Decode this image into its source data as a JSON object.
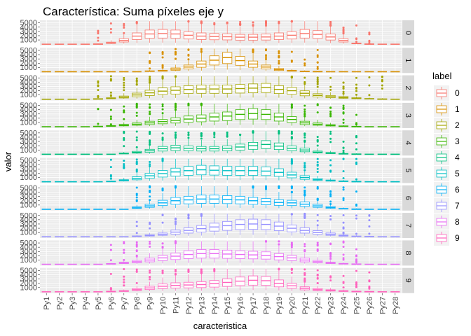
{
  "chart_data": {
    "type": "boxplot",
    "title": "Característica: Suma píxeles eje y",
    "xlabel": "caracteristica",
    "ylabel": "valor",
    "categories": [
      "Py1",
      "Py2",
      "Py3",
      "Py4",
      "Py5",
      "Py6",
      "Py7",
      "Py8",
      "Py9",
      "Py10",
      "Py11",
      "Py12",
      "Py13",
      "Py14",
      "Py15",
      "Py16",
      "Py17",
      "Py18",
      "Py19",
      "Py20",
      "Py21",
      "Py22",
      "Py23",
      "Py24",
      "Py25",
      "Py26",
      "Py27",
      "Py28"
    ],
    "yticks": [
      1000,
      2000,
      3000,
      4000,
      5000
    ],
    "ylim": [
      -300,
      5600
    ],
    "facet_by": "label",
    "legend": {
      "title": "label",
      "position": "right"
    },
    "panel_colors": [
      "#F8766D",
      "#D89000",
      "#A3A500",
      "#39B600",
      "#00BF7D",
      "#00BFC4",
      "#00B0F6",
      "#9590FF",
      "#E76BF3",
      "#FF62BC"
    ],
    "panels": [
      {
        "label": "0",
        "medians": [
          0,
          0,
          0,
          0,
          20,
          300,
          900,
          1900,
          2400,
          2500,
          2400,
          2100,
          1900,
          1800,
          1750,
          1650,
          1650,
          1700,
          1900,
          2100,
          2500,
          2300,
          1700,
          900,
          150,
          20,
          0,
          0
        ]
      },
      {
        "label": "1",
        "medians": [
          0,
          0,
          0,
          0,
          0,
          0,
          0,
          0,
          100,
          200,
          600,
          1100,
          1800,
          2700,
          3300,
          2600,
          1800,
          1100,
          500,
          200,
          60,
          20,
          0,
          0,
          0,
          0,
          0,
          0
        ]
      },
      {
        "label": "2",
        "medians": [
          0,
          0,
          0,
          0,
          50,
          200,
          500,
          1000,
          1500,
          1900,
          2100,
          2300,
          2400,
          2400,
          2400,
          2500,
          2600,
          2700,
          2300,
          2000,
          1400,
          900,
          600,
          400,
          200,
          80,
          20,
          0
        ]
      },
      {
        "label": "3",
        "medians": [
          0,
          0,
          0,
          0,
          50,
          150,
          350,
          600,
          900,
          1200,
          1500,
          1800,
          2000,
          2300,
          2500,
          2900,
          3100,
          2900,
          2300,
          1700,
          900,
          600,
          300,
          100,
          30,
          0,
          0,
          0
        ]
      },
      {
        "label": "4",
        "medians": [
          0,
          0,
          0,
          0,
          0,
          0,
          150,
          450,
          800,
          1300,
          1500,
          1400,
          1300,
          1300,
          1400,
          1700,
          2000,
          2300,
          1900,
          1400,
          1000,
          500,
          250,
          80,
          20,
          0,
          0,
          0
        ]
      },
      {
        "label": "5",
        "medians": [
          0,
          0,
          0,
          0,
          0,
          50,
          300,
          800,
          1400,
          1900,
          2300,
          2600,
          2800,
          2700,
          2600,
          2600,
          2600,
          2500,
          2200,
          1600,
          1000,
          500,
          250,
          100,
          30,
          0,
          0,
          0
        ]
      },
      {
        "label": "6",
        "medians": [
          0,
          0,
          0,
          0,
          0,
          0,
          0,
          350,
          800,
          1500,
          2000,
          2200,
          2400,
          2400,
          2300,
          2200,
          2000,
          1800,
          1600,
          1500,
          1200,
          800,
          400,
          100,
          20,
          0,
          0,
          0
        ]
      },
      {
        "label": "7",
        "medians": [
          0,
          0,
          0,
          0,
          0,
          0,
          0,
          100,
          300,
          600,
          1100,
          1500,
          1900,
          2300,
          2600,
          2900,
          3000,
          2900,
          2500,
          2000,
          1500,
          1000,
          600,
          250,
          80,
          20,
          0,
          0
        ]
      },
      {
        "label": "8",
        "medians": [
          0,
          0,
          0,
          0,
          0,
          80,
          300,
          600,
          1000,
          1500,
          1900,
          2300,
          2500,
          2500,
          2400,
          2300,
          2200,
          2100,
          1800,
          1500,
          1000,
          600,
          300,
          100,
          30,
          0,
          0,
          0
        ]
      },
      {
        "label": "9",
        "medians": [
          0,
          0,
          0,
          0,
          0,
          50,
          150,
          500,
          900,
          1300,
          1500,
          1600,
          1700,
          1900,
          2200,
          2500,
          2700,
          2600,
          2000,
          1400,
          800,
          500,
          300,
          150,
          50,
          20,
          0,
          0
        ]
      }
    ]
  }
}
